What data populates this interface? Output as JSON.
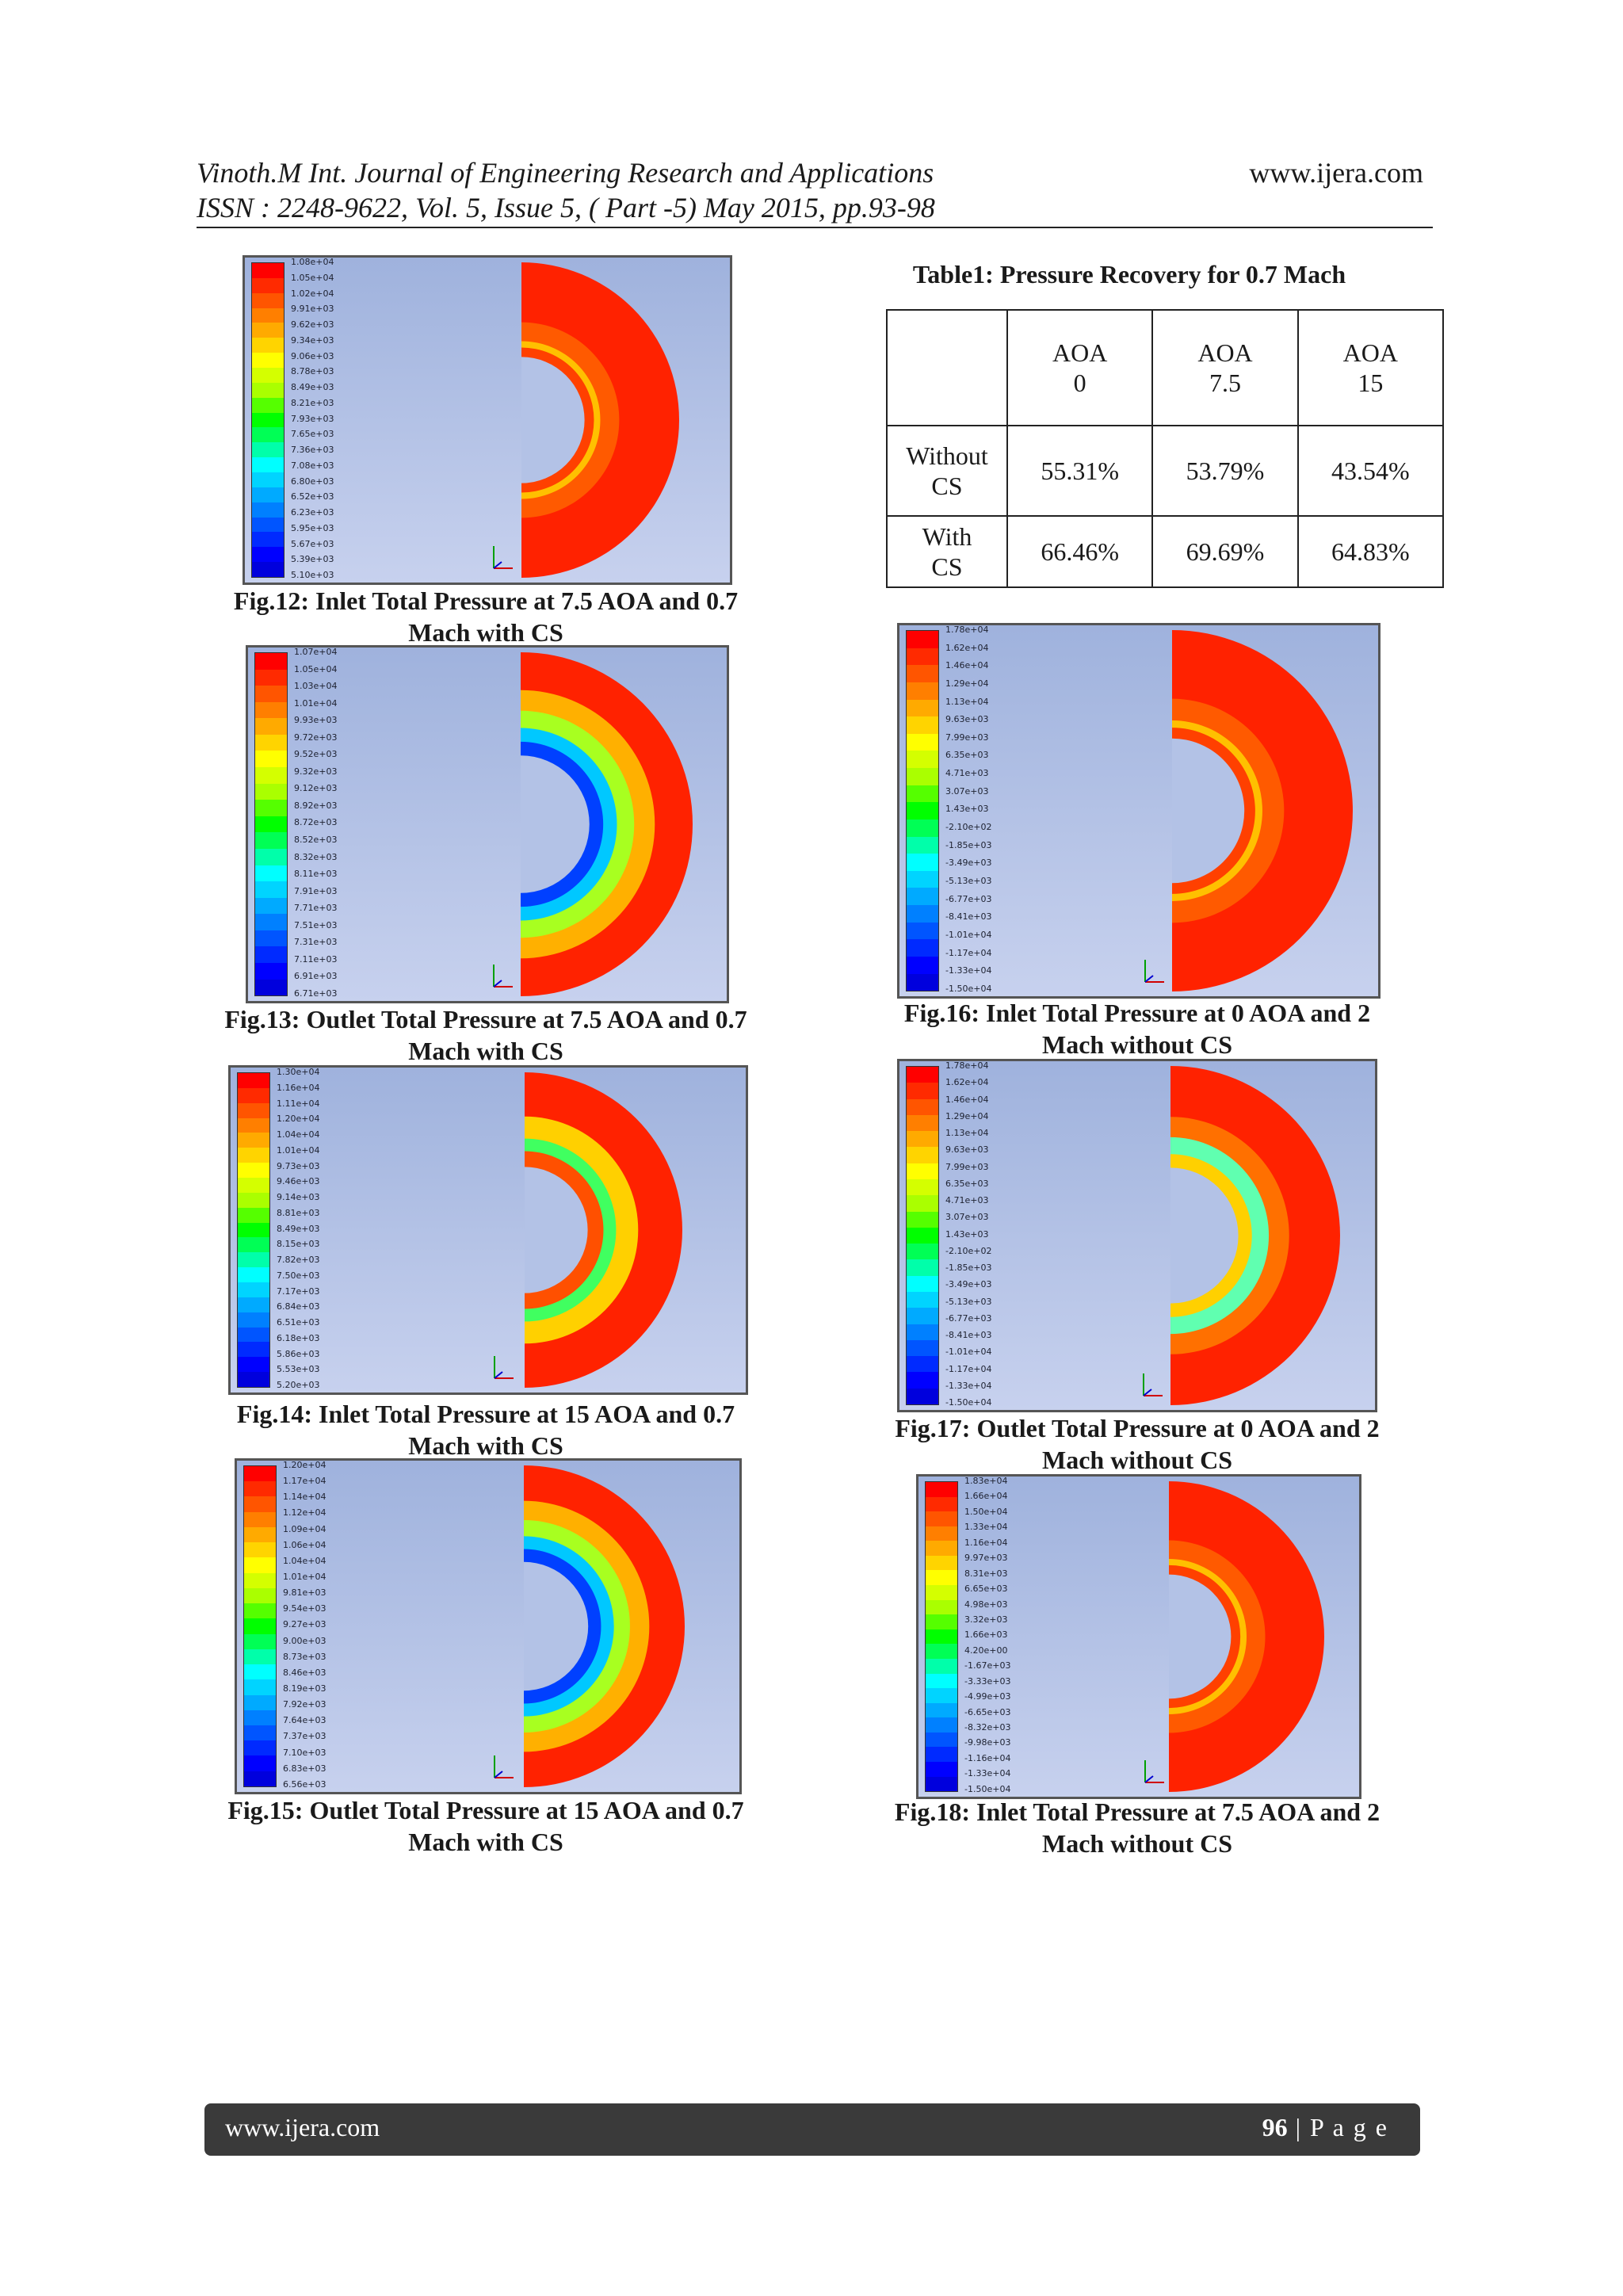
{
  "header": {
    "line1": "Vinoth.M Int. Journal of Engineering Research and Applications",
    "line2": "ISSN : 2248-9622, Vol. 5, Issue 5, ( Part -5) May 2015, pp.93-98",
    "site": "www.ijera.com"
  },
  "table": {
    "title": "Table1: Pressure Recovery for 0.7 Mach",
    "head_top": [
      "AOA",
      "AOA",
      "AOA"
    ],
    "head_bottom": [
      "0",
      "7.5",
      "15"
    ],
    "rows": [
      {
        "label_top": "Without",
        "label_bottom": "CS",
        "values": [
          "55.31%",
          "53.79%",
          "43.54%"
        ]
      },
      {
        "label_top": "With",
        "label_bottom": "CS",
        "values": [
          "66.46%",
          "69.69%",
          "64.83%"
        ]
      }
    ]
  },
  "figures": [
    {
      "id": "fig12",
      "caption_line1": "Fig.12: Inlet Total Pressure at 7.5 AOA and 0.7",
      "caption_line2": "Mach with CS",
      "legend": [
        "1.08e+04",
        "1.05e+04",
        "1.02e+04",
        "9.91e+03",
        "9.62e+03",
        "9.34e+03",
        "9.06e+03",
        "8.78e+03",
        "8.49e+03",
        "8.21e+03",
        "7.93e+03",
        "7.65e+03",
        "7.36e+03",
        "7.08e+03",
        "6.80e+03",
        "6.52e+03",
        "6.23e+03",
        "5.95e+03",
        "5.67e+03",
        "5.39e+03",
        "5.10e+03"
      ]
    },
    {
      "id": "fig13",
      "caption_line1": "Fig.13: Outlet Total Pressure at 7.5 AOA and 0.7",
      "caption_line2": "Mach with CS",
      "legend": [
        "1.07e+04",
        "1.05e+04",
        "1.03e+04",
        "1.01e+04",
        "9.93e+03",
        "9.72e+03",
        "9.52e+03",
        "9.32e+03",
        "9.12e+03",
        "8.92e+03",
        "8.72e+03",
        "8.52e+03",
        "8.32e+03",
        "8.11e+03",
        "7.91e+03",
        "7.71e+03",
        "7.51e+03",
        "7.31e+03",
        "7.11e+03",
        "6.91e+03",
        "6.71e+03"
      ]
    },
    {
      "id": "fig14",
      "caption_line1": "Fig.14: Inlet Total Pressure at 15 AOA and 0.7",
      "caption_line2": "Mach with CS",
      "legend": [
        "1.30e+04",
        "1.16e+04",
        "1.11e+04",
        "1.20e+04",
        "1.04e+04",
        "1.01e+04",
        "9.73e+03",
        "9.46e+03",
        "9.14e+03",
        "8.81e+03",
        "8.49e+03",
        "8.15e+03",
        "7.82e+03",
        "7.50e+03",
        "7.17e+03",
        "6.84e+03",
        "6.51e+03",
        "6.18e+03",
        "5.86e+03",
        "5.53e+03",
        "5.20e+03"
      ]
    },
    {
      "id": "fig15",
      "caption_line1": "Fig.15: Outlet Total Pressure at 15 AOA and 0.7",
      "caption_line2": "Mach with CS",
      "legend": [
        "1.20e+04",
        "1.17e+04",
        "1.14e+04",
        "1.12e+04",
        "1.09e+04",
        "1.06e+04",
        "1.04e+04",
        "1.01e+04",
        "9.81e+03",
        "9.54e+03",
        "9.27e+03",
        "9.00e+03",
        "8.73e+03",
        "8.46e+03",
        "8.19e+03",
        "7.92e+03",
        "7.64e+03",
        "7.37e+03",
        "7.10e+03",
        "6.83e+03",
        "6.56e+03"
      ]
    },
    {
      "id": "fig16",
      "caption_line1": "Fig.16: Inlet Total Pressure at 0 AOA and 2",
      "caption_line2": "Mach without CS",
      "legend": [
        "1.78e+04",
        "1.62e+04",
        "1.46e+04",
        "1.29e+04",
        "1.13e+04",
        "9.63e+03",
        "7.99e+03",
        "6.35e+03",
        "4.71e+03",
        "3.07e+03",
        "1.43e+03",
        "-2.10e+02",
        "-1.85e+03",
        "-3.49e+03",
        "-5.13e+03",
        "-6.77e+03",
        "-8.41e+03",
        "-1.01e+04",
        "-1.17e+04",
        "-1.33e+04",
        "-1.50e+04"
      ]
    },
    {
      "id": "fig17",
      "caption_line1": "Fig.17: Outlet Total Pressure at 0 AOA and 2",
      "caption_line2": "Mach without CS",
      "legend": [
        "1.78e+04",
        "1.62e+04",
        "1.46e+04",
        "1.29e+04",
        "1.13e+04",
        "9.63e+03",
        "7.99e+03",
        "6.35e+03",
        "4.71e+03",
        "3.07e+03",
        "1.43e+03",
        "-2.10e+02",
        "-1.85e+03",
        "-3.49e+03",
        "-5.13e+03",
        "-6.77e+03",
        "-8.41e+03",
        "-1.01e+04",
        "-1.17e+04",
        "-1.33e+04",
        "-1.50e+04"
      ]
    },
    {
      "id": "fig18",
      "caption_line1": "Fig.18: Inlet Total Pressure at 7.5 AOA and 2",
      "caption_line2": "Mach without CS",
      "legend": [
        "1.83e+04",
        "1.66e+04",
        "1.50e+04",
        "1.33e+04",
        "1.16e+04",
        "9.97e+03",
        "8.31e+03",
        "6.65e+03",
        "4.98e+03",
        "3.32e+03",
        "1.66e+03",
        "4.20e+00",
        "-1.67e+03",
        "-3.33e+03",
        "-4.99e+03",
        "-6.65e+03",
        "-8.32e+03",
        "-9.98e+03",
        "-1.16e+04",
        "-1.33e+04",
        "-1.50e+04"
      ]
    }
  ],
  "footer": {
    "site": "www.ijera.com",
    "page_number": "96",
    "page_suffix": " | P a g e"
  }
}
